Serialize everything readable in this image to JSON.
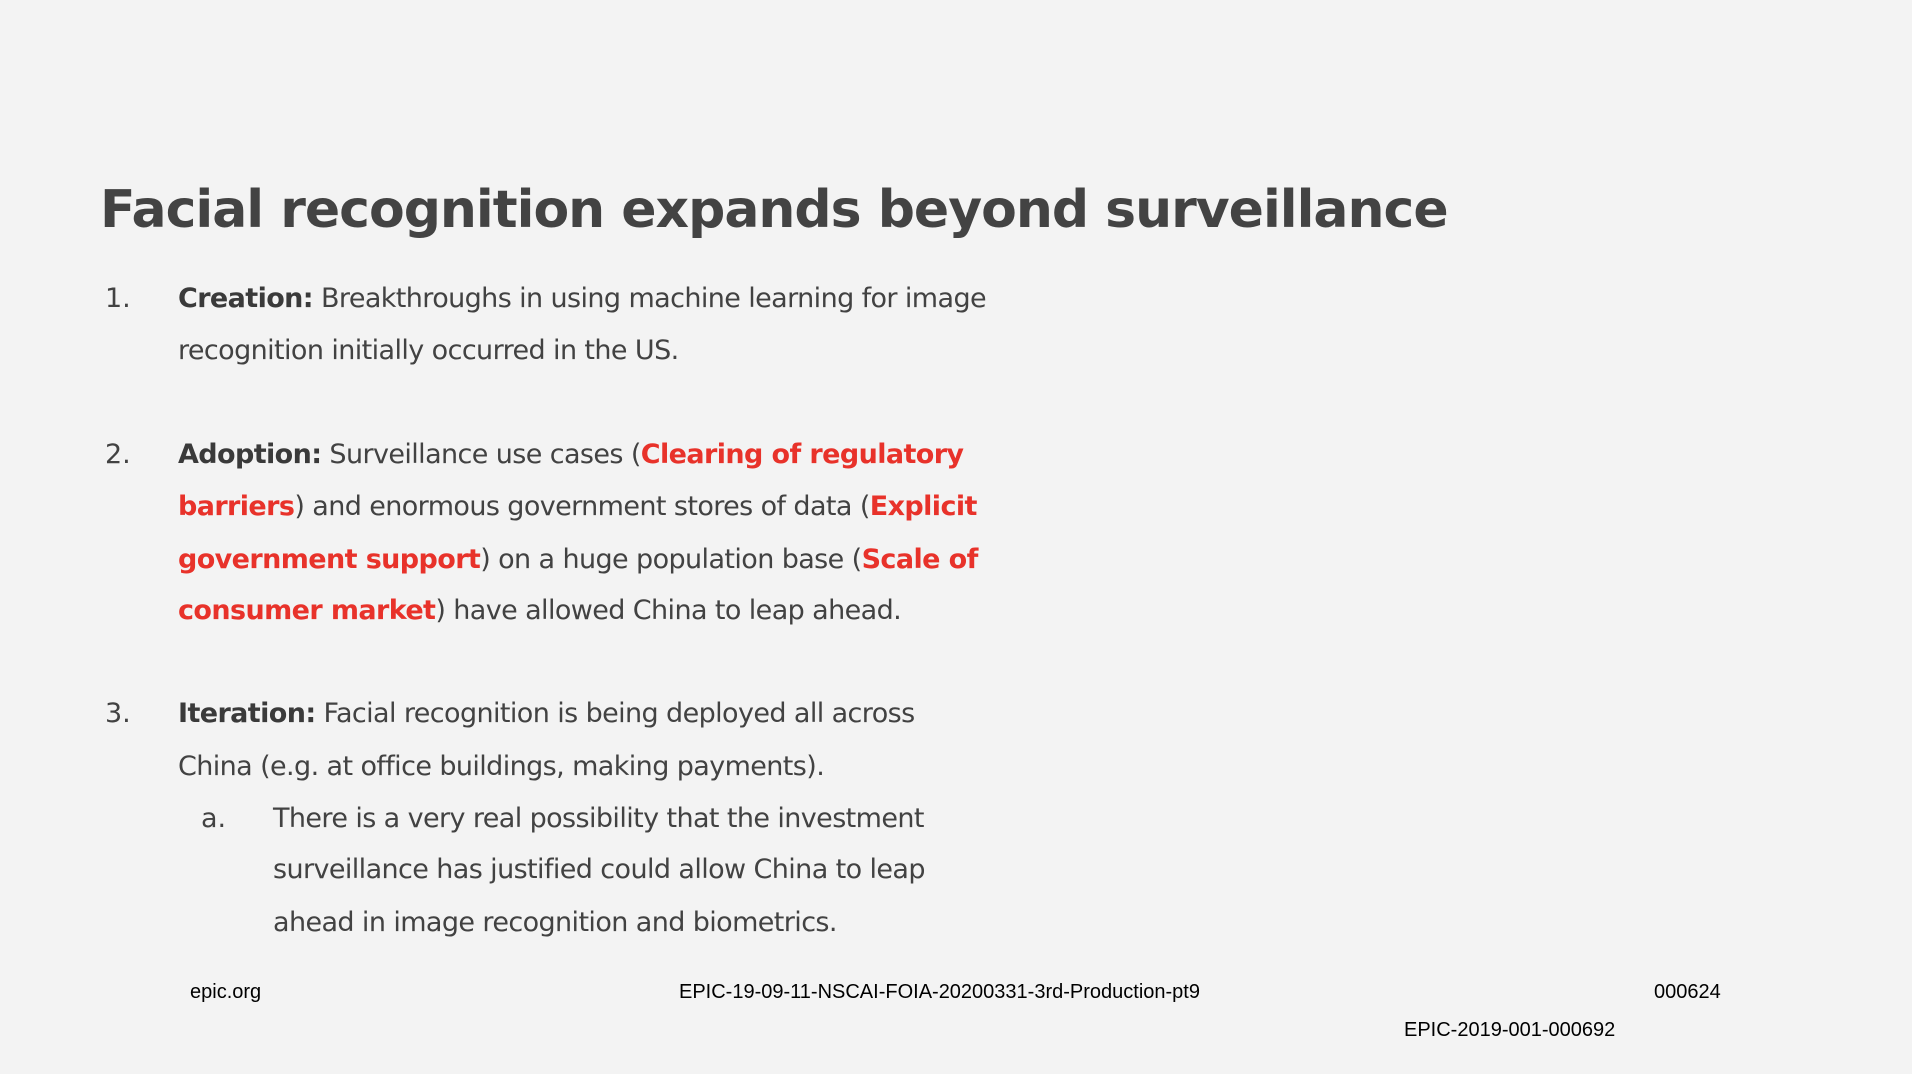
{
  "slide": {
    "title": "Facial recognition expands beyond surveillance",
    "accent_color": "#e8322a",
    "items": [
      {
        "marker": "1.",
        "indent": 0,
        "lines": [
          [
            {
              "t": "Creation:",
              "s": "b"
            },
            {
              "t": " Breakthroughs in using machine learning for image",
              "s": ""
            }
          ],
          [
            {
              "t": "recognition initially occurred in the US.",
              "s": ""
            }
          ]
        ]
      },
      {
        "marker": "2.",
        "indent": 0,
        "lines": [
          [
            {
              "t": "Adoption:",
              "s": "b"
            },
            {
              "t": " Surveillance use cases (",
              "s": ""
            },
            {
              "t": "Clearing of regulatory",
              "s": "r"
            }
          ],
          [
            {
              "t": "barriers",
              "s": "r"
            },
            {
              "t": ") and enormous government stores of data (",
              "s": ""
            },
            {
              "t": "Explicit",
              "s": "r"
            }
          ],
          [
            {
              "t": "government support",
              "s": "r"
            },
            {
              "t": ") on a huge population base (",
              "s": ""
            },
            {
              "t": "Scale of",
              "s": "r"
            }
          ],
          [
            {
              "t": "consumer market",
              "s": "r"
            },
            {
              "t": ") have allowed China to leap ahead.",
              "s": ""
            }
          ]
        ]
      },
      {
        "marker": "3.",
        "indent": 0,
        "lines": [
          [
            {
              "t": "Iteration:",
              "s": "b"
            },
            {
              "t": " Facial recognition is being deployed all across",
              "s": ""
            }
          ],
          [
            {
              "t": "China (e.g. at office buildings, making payments).",
              "s": ""
            }
          ]
        ]
      },
      {
        "marker": "a.",
        "indent": 1,
        "lines": [
          [
            {
              "t": "There is a very real possibility that the investment",
              "s": ""
            }
          ],
          [
            {
              "t": "surveillance has justified could allow China to leap",
              "s": ""
            }
          ],
          [
            {
              "t": "ahead in image recognition and biometrics.",
              "s": ""
            }
          ]
        ]
      }
    ]
  },
  "footer": {
    "site": "epic.org",
    "production_id": "EPIC-19-09-11-NSCAI-FOIA-20200331-3rd-Production-pt9",
    "page_number": "000624",
    "bates_number": "EPIC-2019-001-000692"
  }
}
